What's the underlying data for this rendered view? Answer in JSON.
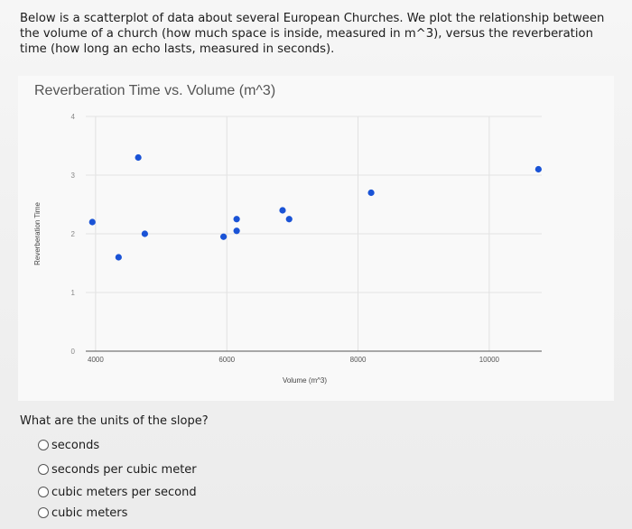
{
  "intro": {
    "text": "Below is a scatterplot of data about several European Churches. We plot the relationship between the volume of a church (how much space is inside, measured in m^3), versus the reverberation time (how long an echo lasts, measured in seconds)."
  },
  "chart_data": {
    "type": "scatter",
    "title": "Reverberation Time vs. Volume (m^3)",
    "xlabel": "Volume (m^3)",
    "ylabel": "Reverberation Time",
    "xlim": [
      3850,
      10800
    ],
    "ylim": [
      0,
      4
    ],
    "x_ticks": [
      4000,
      6000,
      8000,
      10000
    ],
    "y_ticks": [
      0,
      1,
      2,
      3,
      4
    ],
    "grid": true,
    "point_color": "#1a53d6",
    "points": [
      {
        "x": 3950,
        "y": 2.2
      },
      {
        "x": 4350,
        "y": 1.6
      },
      {
        "x": 4650,
        "y": 3.3
      },
      {
        "x": 4750,
        "y": 2.0
      },
      {
        "x": 5950,
        "y": 1.95
      },
      {
        "x": 6150,
        "y": 2.05
      },
      {
        "x": 6150,
        "y": 2.25
      },
      {
        "x": 6850,
        "y": 2.4
      },
      {
        "x": 6950,
        "y": 2.25
      },
      {
        "x": 8200,
        "y": 2.7
      },
      {
        "x": 10750,
        "y": 3.1
      }
    ]
  },
  "question": {
    "text": "What are the units of the slope?",
    "options": [
      {
        "label": "seconds"
      },
      {
        "label": "seconds per cubic meter"
      },
      {
        "label": "cubic meters per second"
      },
      {
        "label": "cubic meters"
      }
    ]
  }
}
